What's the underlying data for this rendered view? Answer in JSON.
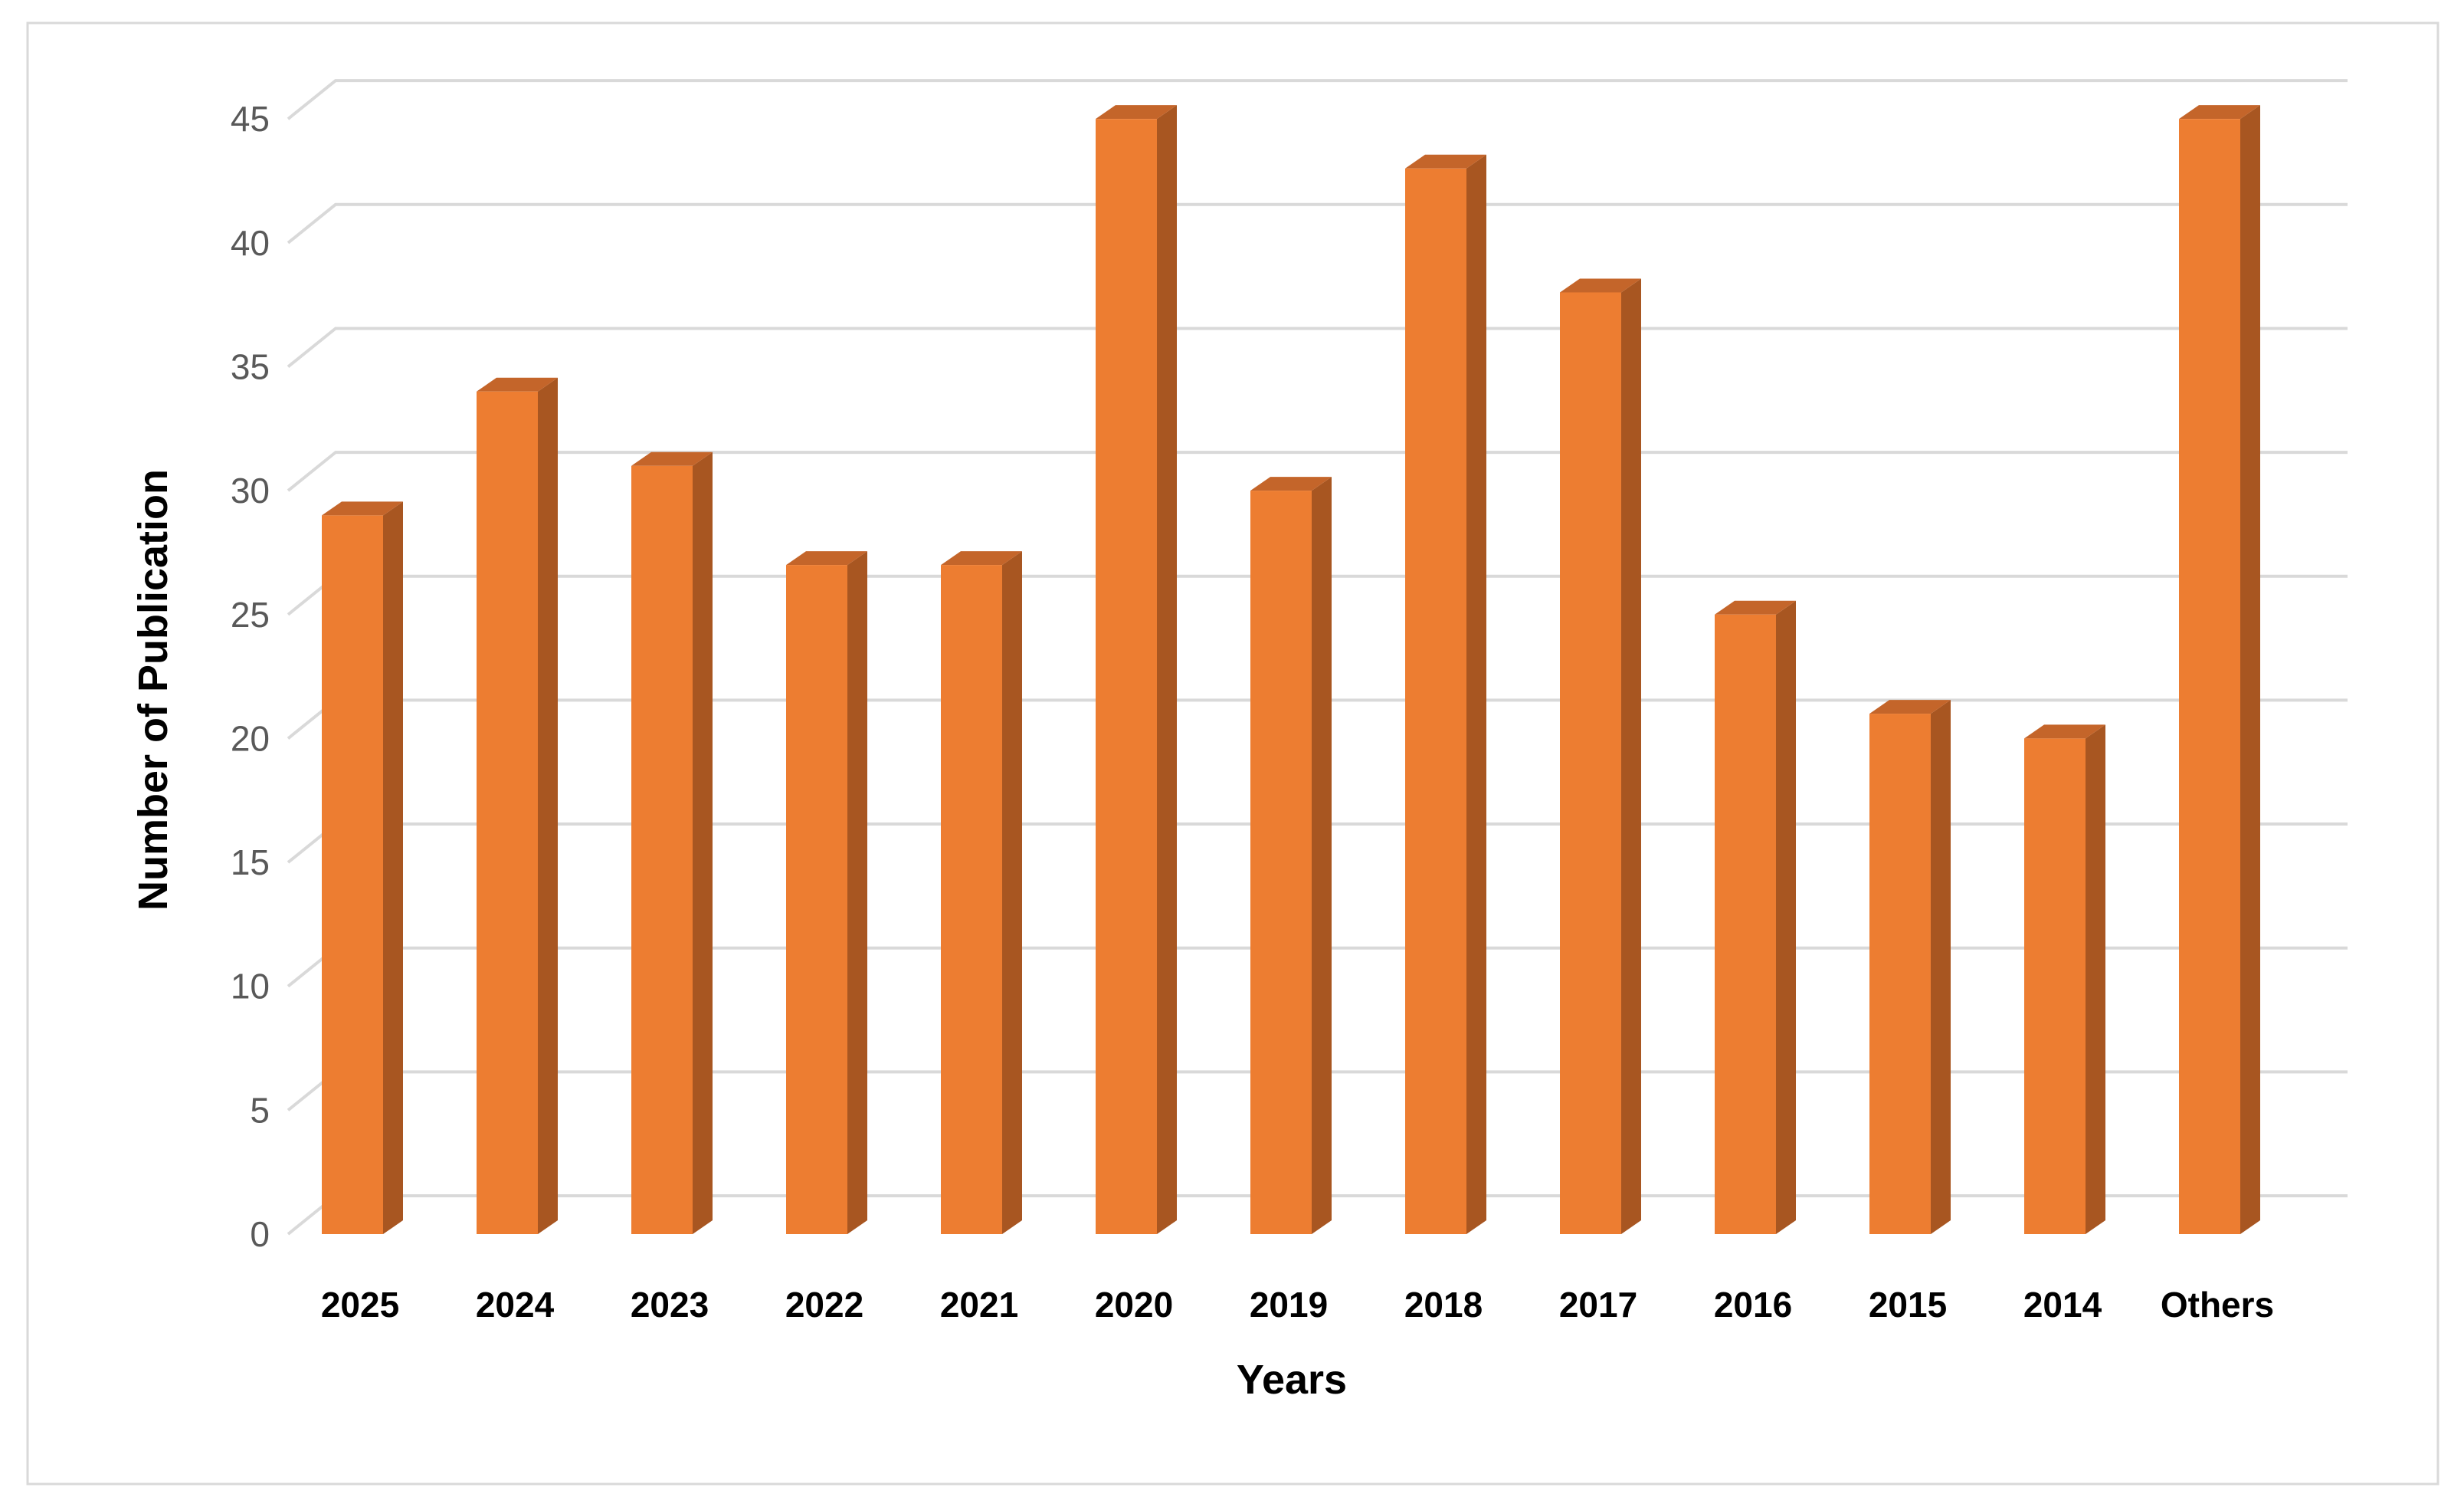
{
  "chart_data": {
    "type": "bar",
    "style": "3d-column",
    "title": "",
    "xlabel": "Years",
    "ylabel": "Number of Publication",
    "categories": [
      "2025",
      "2024",
      "2023",
      "2022",
      "2021",
      "2020",
      "2019",
      "2018",
      "2017",
      "2016",
      "2015",
      "2014",
      "Others"
    ],
    "values": [
      29,
      34,
      31,
      27,
      27,
      45,
      30,
      43,
      38,
      25,
      21,
      20,
      45
    ],
    "ylim": [
      0,
      45
    ],
    "yticks": [
      0,
      5,
      10,
      15,
      20,
      25,
      30,
      35,
      40,
      45
    ],
    "grid": true,
    "legend": "none",
    "colors": {
      "bar_front": "#ed7d31",
      "bar_side": "#a85621",
      "bar_top": "#c4652a",
      "gridline": "#d9d9d9",
      "border": "#d9d9d9"
    }
  }
}
